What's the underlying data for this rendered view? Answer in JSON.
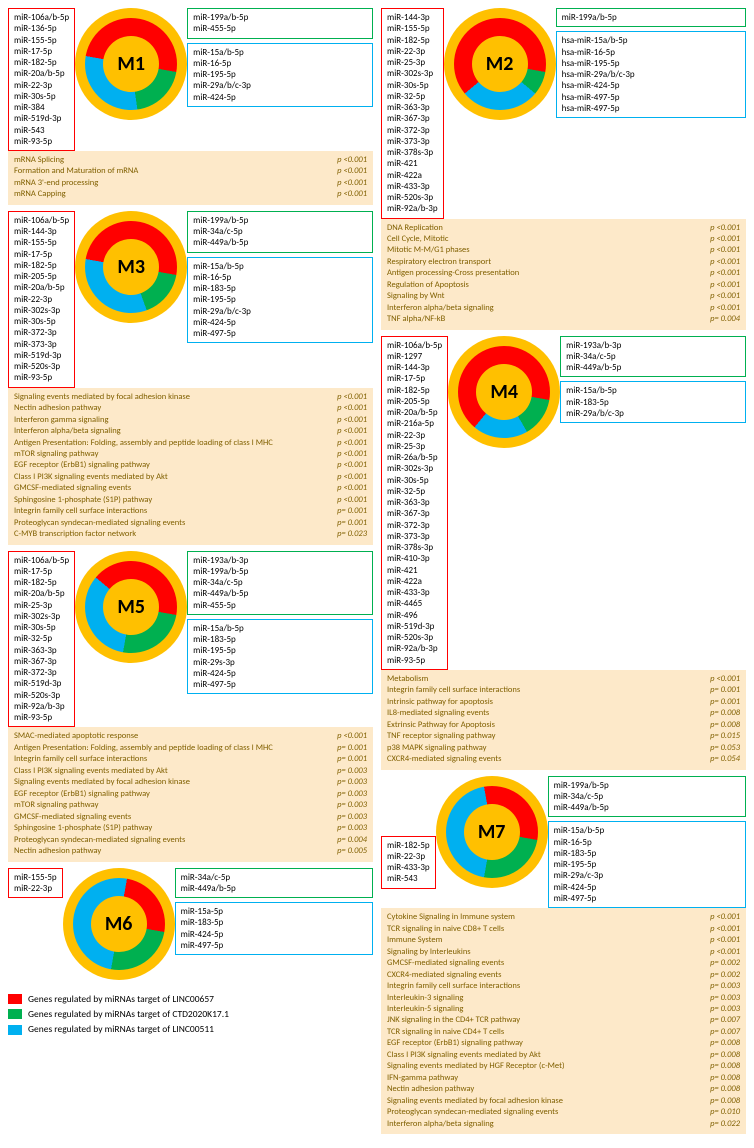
{
  "colors": {
    "red": "#ff0000",
    "green": "#00b050",
    "blue": "#00b0f0",
    "ring": "#ffc000",
    "pathway_bg": "#fde9c9",
    "pathway_text": "#806000"
  },
  "legend": {
    "red": "Genes regulated by miRNAs target of LINC00657",
    "green": "Genes regulated by miRNAs target of CTD2020K17.1",
    "blue": "Genes regulated by miRNAs target of LINC00511"
  },
  "modules": {
    "M1": {
      "label": "M1",
      "slices": {
        "red": 180,
        "green": 72,
        "blue": 108
      },
      "red": [
        "miR-106a/b-5p",
        "miR-136-5p",
        "miR-155-5p",
        "miR-17-5p",
        "miR-182-5p",
        "miR-20a/b-5p",
        "miR-22-3p",
        "miR-30s-5p",
        "miR-384",
        "miR-519d-3p",
        "miR-543",
        "miR-93-5p"
      ],
      "green": [
        "miR-199a/b-5p",
        "miR-455-5p"
      ],
      "blue": [
        "miR-15a/b-5p",
        "miR-16-5p",
        "miR-195-5p",
        "miR-29a/b/c-3p",
        "miR-424-5p"
      ],
      "pathways": [
        {
          "name": "mRNA Splicing",
          "p": "p <0.001"
        },
        {
          "name": "Formation and Maturation of mRNA",
          "p": "p <0.001"
        },
        {
          "name": "mRNA 3'-end processing",
          "p": "p <0.001"
        },
        {
          "name": "mRNA Capping",
          "p": "p <0.001"
        }
      ]
    },
    "M2": {
      "label": "M2",
      "slices": {
        "red": 230,
        "green": 30,
        "blue": 100
      },
      "red": [
        "miR-144-3p",
        "miR-155-5p",
        "miR-182-5p",
        "miR-22-3p",
        "miR-25-3p",
        "miR-302s-3p",
        "miR-30s-5p",
        "miR-32-5p",
        "miR-363-3p",
        "miR-367-3p",
        "miR-372-3p",
        "miR-373-3p",
        "miR-378s-3p",
        "miR-421",
        "miR-422a",
        "miR-433-3p",
        "miR-520s-3p",
        "miR-92a/b-3p"
      ],
      "green": [
        "miR-199a/b-5p"
      ],
      "blue": [
        "hsa-miR-15a/b-5p",
        "hsa-miR-16-5p",
        "hsa-miR-195-5p",
        "hsa-miR-29a/b/c-3p",
        "hsa-miR-424-5p",
        "hsa-miR-497-5p",
        "hsa-miR-497-5p"
      ],
      "pathways": [
        {
          "name": "DNA Replication",
          "p": "p <0.001"
        },
        {
          "name": "Cell Cycle, Mitotic",
          "p": "p <0.001"
        },
        {
          "name": "Mitotic M-M/G1 phases",
          "p": "p <0.001"
        },
        {
          "name": "Respiratory electron transport",
          "p": "p <0.001"
        },
        {
          "name": "Antigen processing-Cross presentation",
          "p": "p <0.001"
        },
        {
          "name": "Regulation of Apoptosis",
          "p": "p <0.001"
        },
        {
          "name": "Signaling by Wnt",
          "p": "p <0.001"
        },
        {
          "name": "Interferon alpha/beta signaling",
          "p": "p <0.001"
        },
        {
          "name": "TNF alpha/NF-kB",
          "p": "p= 0.004"
        }
      ]
    },
    "M3": {
      "label": "M3",
      "slices": {
        "red": 180,
        "green": 60,
        "blue": 120
      },
      "red": [
        "miR-106a/b-5p",
        "miR-144-3p",
        "miR-155-5p",
        "miR-17-5p",
        "miR-182-5p",
        "miR-205-5p",
        "miR-20a/b-5p",
        "miR-22-3p",
        "miR-302s-3p",
        "miR-30s-5p",
        "miR-372-3p",
        "miR-373-3p",
        "miR-519d-3p",
        "miR-520s-3p",
        "miR-93-5p"
      ],
      "green": [
        "miR-199a/b-5p",
        "miR-34a/c-5p",
        "miR-449a/b-5p"
      ],
      "blue": [
        "miR-15a/b-5p",
        "miR-16-5p",
        "miR-183-5p",
        "miR-195-5p",
        "miR-29a/b/c-3p",
        "miR-424-5p",
        "miR-497-5p"
      ],
      "pathways": [
        {
          "name": "Signaling events mediated by focal adhesion kinase",
          "p": "p <0.001"
        },
        {
          "name": "Nectin adhesion pathway",
          "p": "p <0.001"
        },
        {
          "name": "Interferon gamma signaling",
          "p": "p <0.001"
        },
        {
          "name": "Interferon alpha/beta signaling",
          "p": "p <0.001"
        },
        {
          "name": "Antigen Presentation: Folding, assembly and peptide loading of class I MHC",
          "p": "p <0.001"
        },
        {
          "name": "mTOR signaling pathway",
          "p": "p <0.001"
        },
        {
          "name": "EGF receptor (ErbB1) signaling pathway",
          "p": "p <0.001"
        },
        {
          "name": "Class I PI3K signaling events mediated by Akt",
          "p": "p <0.001"
        },
        {
          "name": "GMCSF-mediated signaling events",
          "p": "p <0.001"
        },
        {
          "name": "Sphingosine 1-phosphate (S1P) pathway",
          "p": "p <0.001"
        },
        {
          "name": "Integrin family cell surface interactions",
          "p": "p= 0.001"
        },
        {
          "name": "Proteoglycan syndecan-mediated signaling events",
          "p": "p= 0.001"
        },
        {
          "name": "C-MYB transcription factor network",
          "p": "p= 0.023"
        }
      ]
    },
    "M4": {
      "label": "M4",
      "slices": {
        "red": 240,
        "green": 50,
        "blue": 70
      },
      "red": [
        "miR-106a/b-5p",
        "miR-1297",
        "miR-144-3p",
        "miR-17-5p",
        "miR-182-5p",
        "miR-205-5p",
        "miR-20a/b-5p",
        "miR-216a-5p",
        "miR-22-3p",
        "miR-25-3p",
        "miR-26a/b-5p",
        "miR-302s-3p",
        "miR-30s-5p",
        "miR-32-5p",
        "miR-363-3p",
        "miR-367-3p",
        "miR-372-3p",
        "miR-373-3p",
        "miR-378s-3p",
        "miR-410-3p",
        "miR-421",
        "miR-422a",
        "miR-433-3p",
        "miR-4465",
        "miR-496",
        "miR-519d-3p",
        "miR-520s-3p",
        "miR-92a/b-3p",
        "miR-93-5p"
      ],
      "green": [
        "miR-193a/b-3p",
        "miR-34a/c-5p",
        "miR-449a/b-5p"
      ],
      "blue": [
        "miR-15a/b-5p",
        "miR-183-5p",
        "miR-29a/b/c-3p"
      ],
      "pathways": [
        {
          "name": "Metabolism",
          "p": "p <0.001"
        },
        {
          "name": "Integrin family cell surface interactions",
          "p": "p= 0.001"
        },
        {
          "name": "Intrinsic pathway for apoptosis",
          "p": "p= 0.001"
        },
        {
          "name": "IL8-mediated signaling events",
          "p": "p= 0.008"
        },
        {
          "name": "Extrinsic Pathway for Apoptosis",
          "p": "p= 0.008"
        },
        {
          "name": "TNF receptor signaling pathway",
          "p": "p= 0.015"
        },
        {
          "name": "p38 MAPK signaling pathway",
          "p": "p= 0.053"
        },
        {
          "name": "CXCR4-mediated signaling events",
          "p": "p= 0.054"
        }
      ]
    },
    "M5": {
      "label": "M5",
      "slices": {
        "red": 150,
        "green": 90,
        "blue": 120
      },
      "red": [
        "miR-106a/b-5p",
        "miR-17-5p",
        "miR-182-5p",
        "miR-20a/b-5p",
        "miR-25-3p",
        "miR-302s-3p",
        "miR-30s-5p",
        "miR-32-5p",
        "miR-363-3p",
        "miR-367-3p",
        "miR-372-3p",
        "miR-519d-3p",
        "miR-520s-3p",
        "miR-92a/b-3p",
        "miR-93-5p"
      ],
      "green": [
        "miR-193a/b-3p",
        "miR-199a/b-5p",
        "miR-34a/c-5p",
        "miR-449a/b-5p",
        "miR-455-5p"
      ],
      "blue": [
        "miR-15a/b-5p",
        "miR-183-5p",
        "miR-195-5p",
        "miR-29s-3p",
        "miR-424-5p",
        "miR-497-5p"
      ],
      "pathways": [
        {
          "name": "SMAC-mediated apoptotic response",
          "p": "p <0.001"
        },
        {
          "name": "Antigen Presentation: Folding, assembly and peptide loading of class I MHC",
          "p": "p= 0.001"
        },
        {
          "name": "Integrin family cell surface interactions",
          "p": "p= 0.001"
        },
        {
          "name": "Class I PI3K signaling events mediated by Akt",
          "p": "p= 0.003"
        },
        {
          "name": "Signaling events mediated by focal adhesion kinase",
          "p": "p= 0.003"
        },
        {
          "name": "EGF receptor (ErbB1) signaling pathway",
          "p": "p= 0.003"
        },
        {
          "name": "mTOR signaling pathway",
          "p": "p= 0.003"
        },
        {
          "name": "GMCSF-mediated signaling events",
          "p": "p= 0.003"
        },
        {
          "name": "Sphingosine 1-phosphate (S1P) pathway",
          "p": "p= 0.003"
        },
        {
          "name": "Proteoglycan syndecan-mediated signaling events",
          "p": "p= 0.004"
        },
        {
          "name": "Nectin adhesion pathway",
          "p": "p= 0.005"
        }
      ]
    },
    "M6": {
      "label": "M6",
      "slices": {
        "red": 90,
        "green": 90,
        "blue": 180
      },
      "red": [
        "miR-155-5p",
        "miR-22-3p"
      ],
      "green": [
        "miR-34a/c-5p",
        "miR-449a/b-5p"
      ],
      "blue": [
        "miR-15a-5p",
        "miR-183-5p",
        "miR-424-5p",
        "miR-497-5p"
      ],
      "pathways": []
    },
    "M7": {
      "label": "M7",
      "slices": {
        "red": 110,
        "green": 90,
        "blue": 160
      },
      "red": [
        "miR-182-5p",
        "miR-22-3p",
        "miR-433-3p",
        "miR-543"
      ],
      "green": [
        "miR-199a/b-5p",
        "miR-34a/c-5p",
        "miR-449a/b-5p"
      ],
      "blue": [
        "miR-15a/b-5p",
        "miR-16-5p",
        "miR-183-5p",
        "miR-195-5p",
        "miR-29a/c-3p",
        "miR-424-5p",
        "miR-497-5p"
      ],
      "pathways": [
        {
          "name": "Cytokine Signaling in Immune system",
          "p": "p <0.001"
        },
        {
          "name": "TCR signaling in naive CD8+ T cells",
          "p": "p <0.001"
        },
        {
          "name": "Immune System",
          "p": "p <0.001"
        },
        {
          "name": "Signaling by Interleukins",
          "p": "p <0.001"
        },
        {
          "name": "GMCSF-mediated signaling events",
          "p": "p= 0.002"
        },
        {
          "name": "CXCR4-mediated signaling events",
          "p": "p= 0.002"
        },
        {
          "name": "Integrin family cell surface interactions",
          "p": "p= 0.003"
        },
        {
          "name": "Interleukin-3 signaling",
          "p": "p= 0.003"
        },
        {
          "name": "Interleukin-5 signaling",
          "p": "p= 0.003"
        },
        {
          "name": "JNK signaling in the CD4+ TCR pathway",
          "p": "p= 0.007"
        },
        {
          "name": "TCR signaling in naive CD4+ T cells",
          "p": "p= 0.007"
        },
        {
          "name": "EGF receptor (ErbB1) signaling pathway",
          "p": "p= 0.008"
        },
        {
          "name": "Class I PI3K signaling events mediated by Akt",
          "p": "p= 0.008"
        },
        {
          "name": "Signaling events mediated by HGF Receptor (c-Met)",
          "p": "p= 0.008"
        },
        {
          "name": "IFN-gamma pathway",
          "p": "p= 0.008"
        },
        {
          "name": "Nectin adhesion pathway",
          "p": "p= 0.008"
        },
        {
          "name": "Signaling events mediated by focal adhesion kinase",
          "p": "p= 0.008"
        },
        {
          "name": "Proteoglycan syndecan-mediated signaling events",
          "p": "p= 0.010"
        },
        {
          "name": "Interferon alpha/beta signaling",
          "p": "p= 0.022"
        }
      ]
    }
  }
}
